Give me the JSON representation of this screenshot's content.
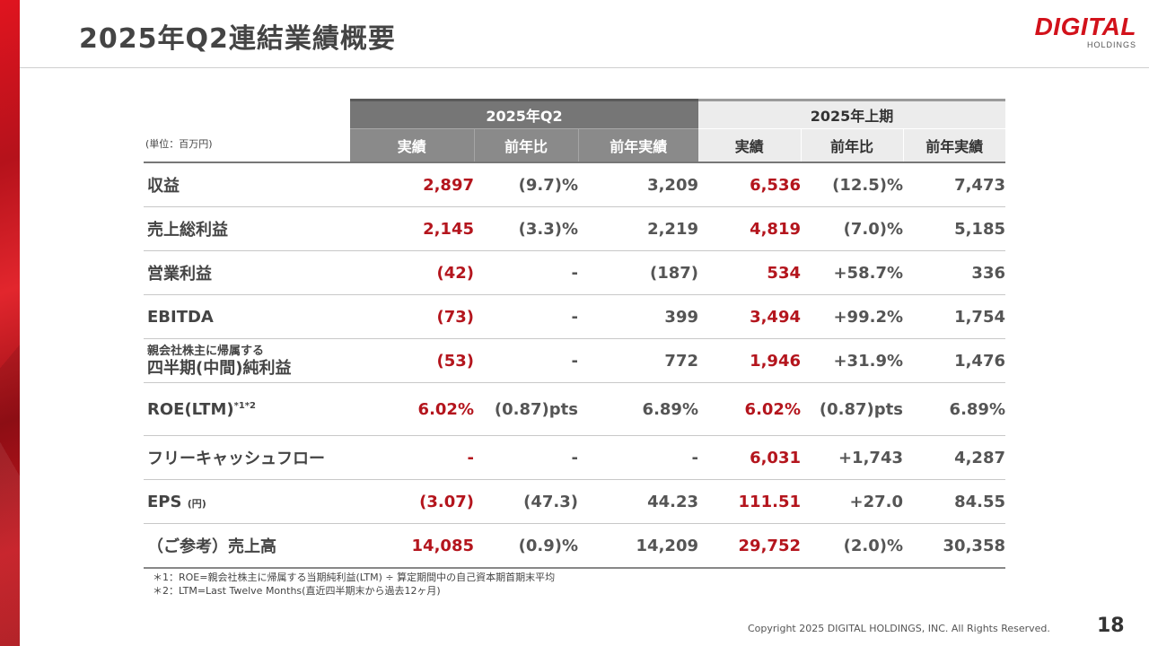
{
  "title": "2025年Q2連結業績概要",
  "logo": {
    "main": "DIGITAL",
    "sub": "HOLDINGS"
  },
  "unit_label": "(単位：百万円)",
  "groups": {
    "q2": "2025年Q2",
    "h1": "2025年上期"
  },
  "columns": {
    "q2_actual": "実績",
    "q2_yoy": "前年比",
    "q2_prev": "前年実績",
    "h1_actual": "実績",
    "h1_yoy": "前年比",
    "h1_prev": "前年実績"
  },
  "rows": [
    {
      "label": "収益",
      "q2_actual": "2,897",
      "q2_yoy": "(9.7)%",
      "q2_prev": "3,209",
      "h1_actual": "6,536",
      "h1_yoy": "(12.5)%",
      "h1_prev": "7,473"
    },
    {
      "label": "売上総利益",
      "q2_actual": "2,145",
      "q2_yoy": "(3.3)%",
      "q2_prev": "2,219",
      "h1_actual": "4,819",
      "h1_yoy": "(7.0)%",
      "h1_prev": "5,185"
    },
    {
      "label": "営業利益",
      "q2_actual": "(42)",
      "q2_yoy": "-",
      "q2_prev": "(187)",
      "h1_actual": "534",
      "h1_yoy": "+58.7%",
      "h1_prev": "336"
    },
    {
      "label": "EBITDA",
      "q2_actual": "(73)",
      "q2_yoy": "-",
      "q2_prev": "399",
      "h1_actual": "3,494",
      "h1_yoy": "+99.2%",
      "h1_prev": "1,754"
    },
    {
      "label_line1": "親会社株主に帰属する",
      "label_line2": "四半期(中間)純利益",
      "q2_actual": "(53)",
      "q2_yoy": "-",
      "q2_prev": "772",
      "h1_actual": "1,946",
      "h1_yoy": "+31.9%",
      "h1_prev": "1,476"
    },
    {
      "label": "ROE(LTM)",
      "label_note": "*1*2",
      "q2_actual": "6.02%",
      "q2_yoy": "(0.87)pts",
      "q2_prev": "6.89%",
      "h1_actual": "6.02%",
      "h1_yoy": "(0.87)pts",
      "h1_prev": "6.89%"
    },
    {
      "label": "フリーキャッシュフロー",
      "q2_actual": "-",
      "q2_yoy": "-",
      "q2_prev": "-",
      "h1_actual": "6,031",
      "h1_yoy": "+1,743",
      "h1_prev": "4,287"
    },
    {
      "label": "EPS",
      "label_note": "(円)",
      "q2_actual": "(3.07)",
      "q2_yoy": "(47.3)",
      "q2_prev": "44.23",
      "h1_actual": "111.51",
      "h1_yoy": "+27.0",
      "h1_prev": "84.55"
    },
    {
      "label": "（ご参考）売上高",
      "q2_actual": "14,085",
      "q2_yoy": "(0.9)%",
      "q2_prev": "14,209",
      "h1_actual": "29,752",
      "h1_yoy": "(2.0)%",
      "h1_prev": "30,358"
    }
  ],
  "notes": [
    "＊1：ROE=親会社株主に帰属する当期純利益(LTM) ÷ 算定期間中の自己資本期首期末平均",
    "＊2：LTM=Last Twelve Months(直近四半期末から過去12ヶ月)"
  ],
  "copyright": "Copyright 2025 DIGITAL HOLDINGS, INC. All Rights Reserved.",
  "page_number": "18",
  "colors": {
    "accent_red": "#b4151d",
    "brand_red": "#d2121b",
    "header_dark": "#767676",
    "header_light": "#ececec"
  }
}
